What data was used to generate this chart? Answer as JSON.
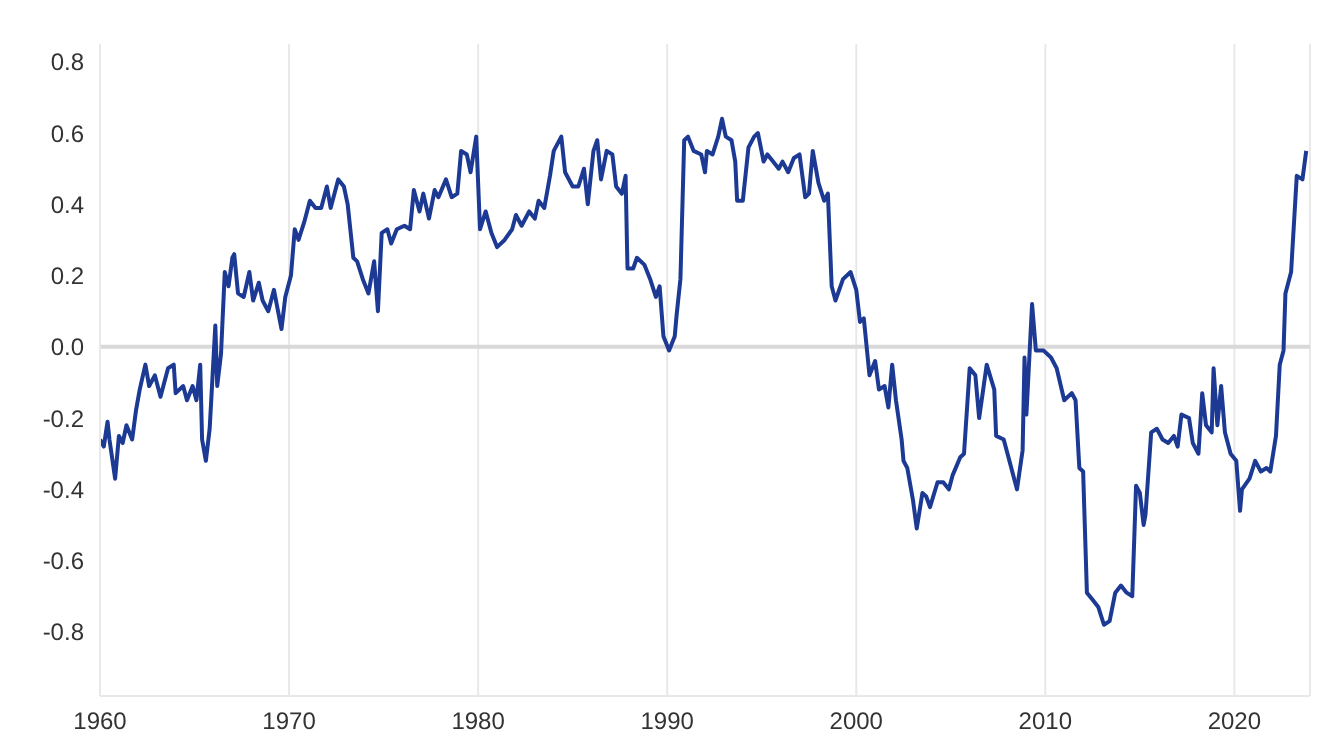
{
  "chart_data": {
    "type": "line",
    "x": [
      1960.0,
      1960.2,
      1960.4,
      1960.5,
      1960.8,
      1961.0,
      1961.2,
      1961.4,
      1961.7,
      1961.9,
      1962.1,
      1962.4,
      1962.6,
      1962.9,
      1963.2,
      1963.6,
      1963.9,
      1964.0,
      1964.4,
      1964.6,
      1964.9,
      1965.1,
      1965.3,
      1965.4,
      1965.6,
      1965.8,
      1966.1,
      1966.2,
      1966.4,
      1966.6,
      1966.8,
      1967.0,
      1967.1,
      1967.3,
      1967.6,
      1967.9,
      1968.1,
      1968.4,
      1968.6,
      1968.9,
      1969.2,
      1969.6,
      1969.8,
      1970.1,
      1970.3,
      1970.5,
      1970.8,
      1971.1,
      1971.4,
      1971.7,
      1972.0,
      1972.2,
      1972.6,
      1972.9,
      1973.1,
      1973.4,
      1973.6,
      1973.9,
      1974.2,
      1974.5,
      1974.7,
      1974.9,
      1975.2,
      1975.4,
      1975.7,
      1976.1,
      1976.4,
      1976.6,
      1976.9,
      1977.1,
      1977.4,
      1977.7,
      1977.9,
      1978.3,
      1978.6,
      1978.9,
      1979.1,
      1979.4,
      1979.6,
      1979.9,
      1980.1,
      1980.4,
      1980.7,
      1981.0,
      1981.4,
      1981.8,
      1982.0,
      1982.3,
      1982.7,
      1983.0,
      1983.2,
      1983.5,
      1983.8,
      1984.0,
      1984.4,
      1984.6,
      1985.0,
      1985.3,
      1985.6,
      1985.8,
      1986.1,
      1986.3,
      1986.5,
      1986.8,
      1987.1,
      1987.3,
      1987.6,
      1987.8,
      1987.9,
      1988.2,
      1988.4,
      1988.8,
      1989.1,
      1989.4,
      1989.6,
      1989.8,
      1990.1,
      1990.4,
      1990.5,
      1990.7,
      1990.9,
      1991.1,
      1991.4,
      1991.8,
      1992.0,
      1992.1,
      1992.4,
      1992.7,
      1992.9,
      1993.1,
      1993.4,
      1993.6,
      1993.7,
      1994.0,
      1994.3,
      1994.6,
      1994.8,
      1995.1,
      1995.3,
      1995.6,
      1995.9,
      1996.1,
      1996.4,
      1996.7,
      1997.0,
      1997.3,
      1997.5,
      1997.7,
      1998.0,
      1998.3,
      1998.5,
      1998.7,
      1998.9,
      1999.3,
      1999.7,
      2000.0,
      2000.2,
      2000.4,
      2000.7,
      2001.0,
      2001.2,
      2001.5,
      2001.7,
      2001.9,
      2002.1,
      2002.4,
      2002.5,
      2002.7,
      2003.0,
      2003.2,
      2003.5,
      2003.7,
      2003.9,
      2004.3,
      2004.6,
      2004.9,
      2005.1,
      2005.5,
      2005.7,
      2006.0,
      2006.3,
      2006.5,
      2006.9,
      2007.3,
      2007.4,
      2007.8,
      2008.1,
      2008.5,
      2008.8,
      2008.9,
      2009.0,
      2009.3,
      2009.5,
      2009.9,
      2010.3,
      2010.6,
      2011.0,
      2011.4,
      2011.6,
      2011.8,
      2012.0,
      2012.2,
      2012.5,
      2012.8,
      2013.1,
      2013.4,
      2013.7,
      2014.0,
      2014.3,
      2014.6,
      2014.8,
      2015.0,
      2015.2,
      2015.3,
      2015.6,
      2015.9,
      2016.2,
      2016.5,
      2016.8,
      2017.0,
      2017.2,
      2017.6,
      2017.8,
      2018.1,
      2018.3,
      2018.5,
      2018.8,
      2018.9,
      2019.1,
      2019.3,
      2019.5,
      2019.8,
      2020.1,
      2020.3,
      2020.4,
      2020.8,
      2021.1,
      2021.4,
      2021.7,
      2021.9,
      2022.2,
      2022.4,
      2022.6,
      2022.7,
      2023.0,
      2023.3,
      2023.6,
      2023.8
    ],
    "series": [
      {
        "color": "#1c3a94",
        "values": [
          -0.26,
          -0.28,
          -0.21,
          -0.26,
          -0.37,
          -0.25,
          -0.27,
          -0.22,
          -0.26,
          -0.18,
          -0.12,
          -0.05,
          -0.11,
          -0.08,
          -0.14,
          -0.06,
          -0.05,
          -0.13,
          -0.11,
          -0.15,
          -0.11,
          -0.15,
          -0.05,
          -0.26,
          -0.32,
          -0.23,
          0.06,
          -0.11,
          -0.02,
          0.21,
          0.17,
          0.25,
          0.26,
          0.15,
          0.14,
          0.21,
          0.13,
          0.18,
          0.13,
          0.1,
          0.16,
          0.05,
          0.14,
          0.2,
          0.33,
          0.3,
          0.35,
          0.41,
          0.39,
          0.39,
          0.45,
          0.39,
          0.47,
          0.45,
          0.4,
          0.25,
          0.24,
          0.19,
          0.15,
          0.24,
          0.1,
          0.32,
          0.33,
          0.29,
          0.33,
          0.34,
          0.33,
          0.44,
          0.38,
          0.43,
          0.36,
          0.44,
          0.42,
          0.47,
          0.42,
          0.43,
          0.55,
          0.54,
          0.49,
          0.59,
          0.33,
          0.38,
          0.32,
          0.28,
          0.3,
          0.33,
          0.37,
          0.34,
          0.38,
          0.36,
          0.41,
          0.39,
          0.48,
          0.55,
          0.59,
          0.49,
          0.45,
          0.45,
          0.5,
          0.4,
          0.55,
          0.58,
          0.47,
          0.55,
          0.54,
          0.45,
          0.43,
          0.48,
          0.22,
          0.22,
          0.25,
          0.23,
          0.19,
          0.14,
          0.17,
          0.03,
          -0.01,
          0.03,
          0.09,
          0.19,
          0.58,
          0.59,
          0.55,
          0.54,
          0.49,
          0.55,
          0.54,
          0.59,
          0.64,
          0.59,
          0.58,
          0.52,
          0.41,
          0.41,
          0.56,
          0.59,
          0.6,
          0.52,
          0.54,
          0.52,
          0.5,
          0.52,
          0.49,
          0.53,
          0.54,
          0.42,
          0.43,
          0.55,
          0.46,
          0.41,
          0.43,
          0.17,
          0.13,
          0.19,
          0.21,
          0.16,
          0.07,
          0.08,
          -0.08,
          -0.04,
          -0.12,
          -0.11,
          -0.17,
          -0.05,
          -0.15,
          -0.26,
          -0.32,
          -0.34,
          -0.43,
          -0.51,
          -0.41,
          -0.42,
          -0.45,
          -0.38,
          -0.38,
          -0.4,
          -0.36,
          -0.31,
          -0.3,
          -0.06,
          -0.08,
          -0.2,
          -0.05,
          -0.12,
          -0.25,
          -0.26,
          -0.32,
          -0.4,
          -0.29,
          -0.03,
          -0.19,
          0.12,
          -0.01,
          -0.01,
          -0.03,
          -0.06,
          -0.15,
          -0.13,
          -0.15,
          -0.34,
          -0.35,
          -0.69,
          -0.71,
          -0.73,
          -0.78,
          -0.77,
          -0.69,
          -0.67,
          -0.69,
          -0.7,
          -0.39,
          -0.41,
          -0.5,
          -0.47,
          -0.24,
          -0.23,
          -0.26,
          -0.27,
          -0.25,
          -0.28,
          -0.19,
          -0.2,
          -0.27,
          -0.3,
          -0.13,
          -0.22,
          -0.24,
          -0.06,
          -0.22,
          -0.11,
          -0.24,
          -0.3,
          -0.32,
          -0.46,
          -0.4,
          -0.37,
          -0.32,
          -0.35,
          -0.34,
          -0.35,
          -0.25,
          -0.05,
          -0.01,
          0.15,
          0.21,
          0.48,
          0.47,
          0.55
        ]
      }
    ],
    "xlim": [
      1960,
      2024
    ],
    "xticks": [
      1960,
      1970,
      1980,
      1990,
      2000,
      2010,
      2020
    ],
    "ylim": [
      -0.98,
      0.85
    ],
    "yticks": [
      -0.8,
      -0.6,
      -0.4,
      -0.2,
      {
        "value": 0,
        "label": "0.0"
      },
      0.2,
      0.4,
      0.6,
      0.8
    ],
    "grid": "x",
    "ref_lines": [
      {
        "axis": "y",
        "value": 0,
        "color": "#d9d9d9"
      }
    ]
  }
}
